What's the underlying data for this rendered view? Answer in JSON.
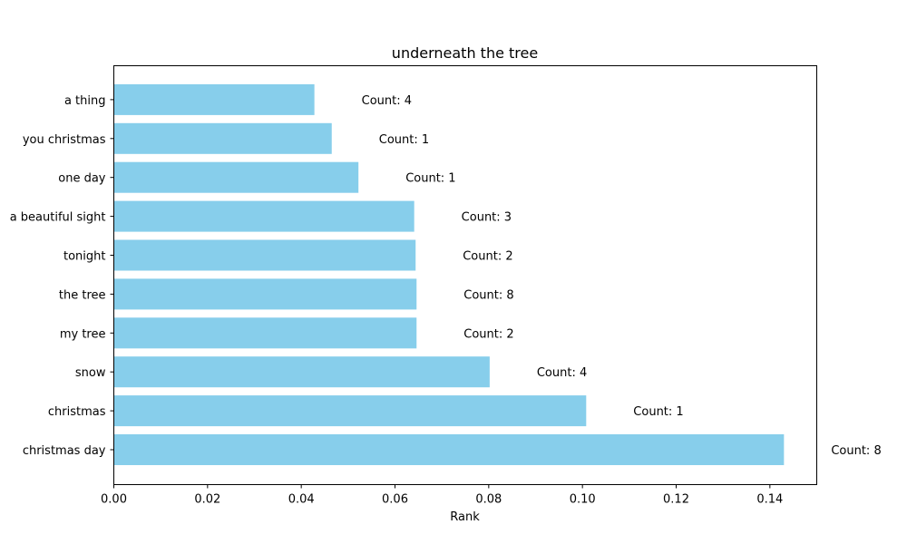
{
  "chart_data": {
    "type": "bar",
    "orientation": "horizontal",
    "title": "underneath the tree",
    "xlabel": "Rank",
    "ylabel": "",
    "xlim": [
      0,
      0.15
    ],
    "xticks": [
      "0.00",
      "0.02",
      "0.04",
      "0.06",
      "0.08",
      "0.10",
      "0.12",
      "0.14"
    ],
    "grid": false,
    "bar_color": "#87CEEB",
    "categories": [
      "christmas day",
      "christmas",
      "snow",
      "my tree",
      "the tree",
      "tonight",
      "a beautiful sight",
      "one day",
      "you christmas",
      "a thing"
    ],
    "values": [
      0.143,
      0.1008,
      0.0802,
      0.0646,
      0.0646,
      0.0644,
      0.0641,
      0.0522,
      0.0465,
      0.0428
    ],
    "annotations": [
      "Count: 8",
      "Count: 1",
      "Count: 4",
      "Count: 2",
      "Count: 8",
      "Count: 2",
      "Count: 3",
      "Count: 1",
      "Count: 1",
      "Count: 4"
    ]
  }
}
